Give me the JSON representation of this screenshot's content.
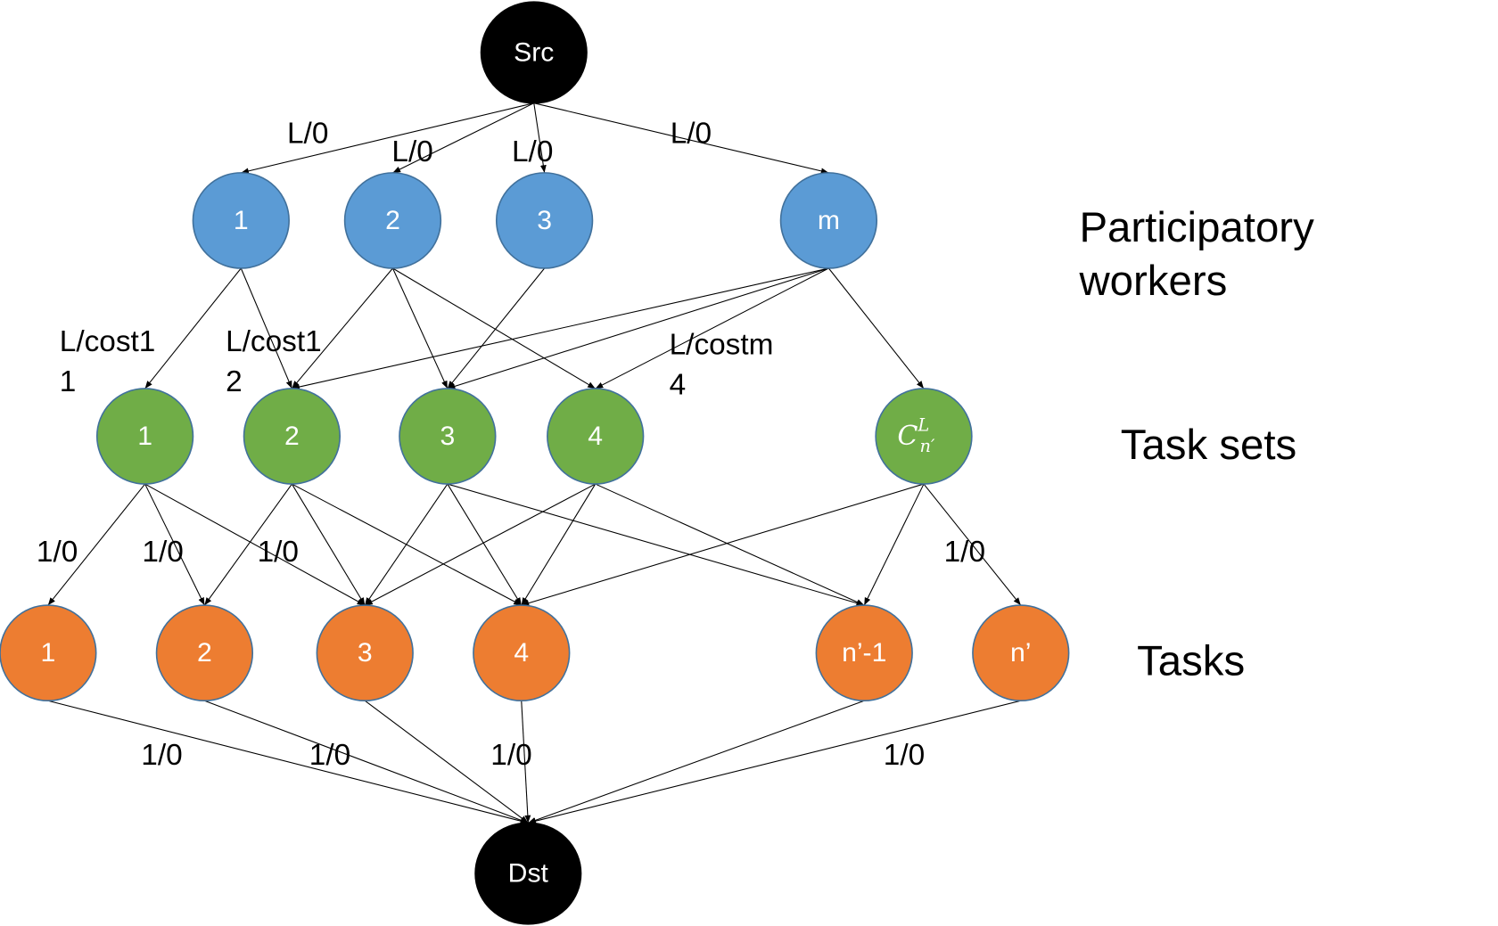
{
  "colors": {
    "source_sink": "#000000",
    "workers": "#5B9BD5",
    "task_sets": "#70AD47",
    "tasks": "#ED7D31",
    "node_border": "#41719C"
  },
  "nodes": {
    "src": {
      "label": "Src"
    },
    "dst": {
      "label": "Dst"
    },
    "workers": [
      {
        "id": "w1",
        "label": "1"
      },
      {
        "id": "w2",
        "label": "2"
      },
      {
        "id": "w3",
        "label": "3"
      },
      {
        "id": "wm",
        "label": "m"
      }
    ],
    "task_sets": [
      {
        "id": "s1",
        "label": "1"
      },
      {
        "id": "s2",
        "label": "2"
      },
      {
        "id": "s3",
        "label": "3"
      },
      {
        "id": "s4",
        "label": "4"
      },
      {
        "id": "sc",
        "label": "C",
        "sup": "L",
        "sub": "n′"
      }
    ],
    "tasks": [
      {
        "id": "t1",
        "label": "1"
      },
      {
        "id": "t2",
        "label": "2"
      },
      {
        "id": "t3",
        "label": "3"
      },
      {
        "id": "t4",
        "label": "4"
      },
      {
        "id": "tn1",
        "label": "n’-1"
      },
      {
        "id": "tn",
        "label": "n’"
      }
    ]
  },
  "edges": [
    [
      "src",
      "w1"
    ],
    [
      "src",
      "w2"
    ],
    [
      "src",
      "w3"
    ],
    [
      "src",
      "wm"
    ],
    [
      "w1",
      "s1"
    ],
    [
      "w1",
      "s2"
    ],
    [
      "w2",
      "s2"
    ],
    [
      "w2",
      "s3"
    ],
    [
      "w2",
      "s4"
    ],
    [
      "w3",
      "s3"
    ],
    [
      "wm",
      "s2"
    ],
    [
      "wm",
      "s3"
    ],
    [
      "wm",
      "s4"
    ],
    [
      "wm",
      "sc"
    ],
    [
      "s1",
      "t1"
    ],
    [
      "s1",
      "t2"
    ],
    [
      "s1",
      "t3"
    ],
    [
      "s2",
      "t2"
    ],
    [
      "s2",
      "t3"
    ],
    [
      "s2",
      "t4"
    ],
    [
      "s3",
      "t3"
    ],
    [
      "s3",
      "t4"
    ],
    [
      "s3",
      "tn1"
    ],
    [
      "s4",
      "t3"
    ],
    [
      "s4",
      "t4"
    ],
    [
      "s4",
      "tn1"
    ],
    [
      "sc",
      "t4"
    ],
    [
      "sc",
      "tn1"
    ],
    [
      "sc",
      "tn"
    ],
    [
      "t1",
      "dst"
    ],
    [
      "t2",
      "dst"
    ],
    [
      "t3",
      "dst"
    ],
    [
      "t4",
      "dst"
    ],
    [
      "tn1",
      "dst"
    ],
    [
      "tn",
      "dst"
    ]
  ],
  "edge_labels": {
    "src_workers": [
      "L/0",
      "L/0",
      "L/0",
      "L/0"
    ],
    "worker_sets": [
      [
        "L/cost1",
        "1"
      ],
      [
        "L/cost1",
        "2"
      ],
      [
        "L/costm",
        "4"
      ]
    ],
    "sets_tasks": [
      "1/0",
      "1/0",
      "1/0",
      "1/0"
    ],
    "tasks_dst": [
      "1/0",
      "1/0",
      "1/0",
      "1/0"
    ]
  },
  "side_labels": {
    "workers": [
      "Participatory",
      "workers"
    ],
    "task_sets": "Task sets",
    "tasks": "Tasks"
  }
}
